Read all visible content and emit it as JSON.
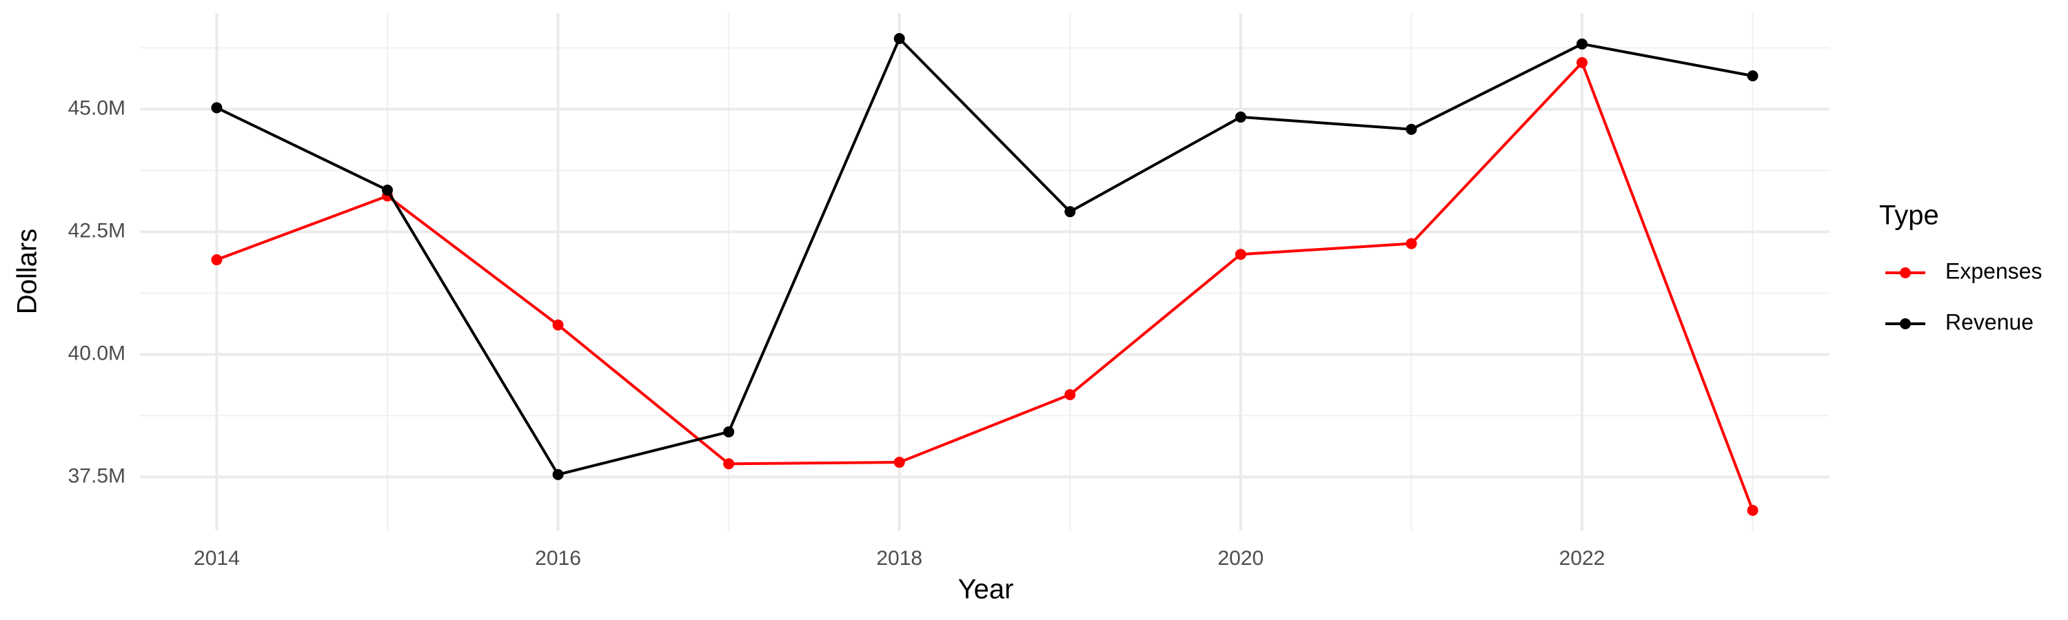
{
  "chart_data": {
    "type": "line",
    "x_label": "Year",
    "y_label": "Dollars",
    "legend_title": "Type",
    "x": [
      2014,
      2015,
      2016,
      2017,
      2018,
      2019,
      2020,
      2021,
      2022,
      2023
    ],
    "series": [
      {
        "name": "Expenses",
        "color": "#ff0000",
        "values": [
          41930000,
          43230000,
          40600000,
          37770000,
          37800000,
          39180000,
          42040000,
          42260000,
          45950000,
          36820000
        ]
      },
      {
        "name": "Revenue",
        "color": "#000000",
        "values": [
          45030000,
          43350000,
          37550000,
          38420000,
          46440000,
          42910000,
          44840000,
          44590000,
          46330000,
          45680000
        ]
      }
    ],
    "xlim": [
      2013.55,
      2023.45
    ],
    "xticks": [
      2014,
      2016,
      2018,
      2020,
      2022
    ],
    "ylim": [
      36410000,
      46960000
    ],
    "yticks": [
      {
        "value": 37500000,
        "label": "37.5M"
      },
      {
        "value": 40000000,
        "label": "40.0M"
      },
      {
        "value": 42500000,
        "label": "42.5M"
      },
      {
        "value": 45000000,
        "label": "45.0M"
      }
    ],
    "grid": true,
    "legend": "right"
  }
}
